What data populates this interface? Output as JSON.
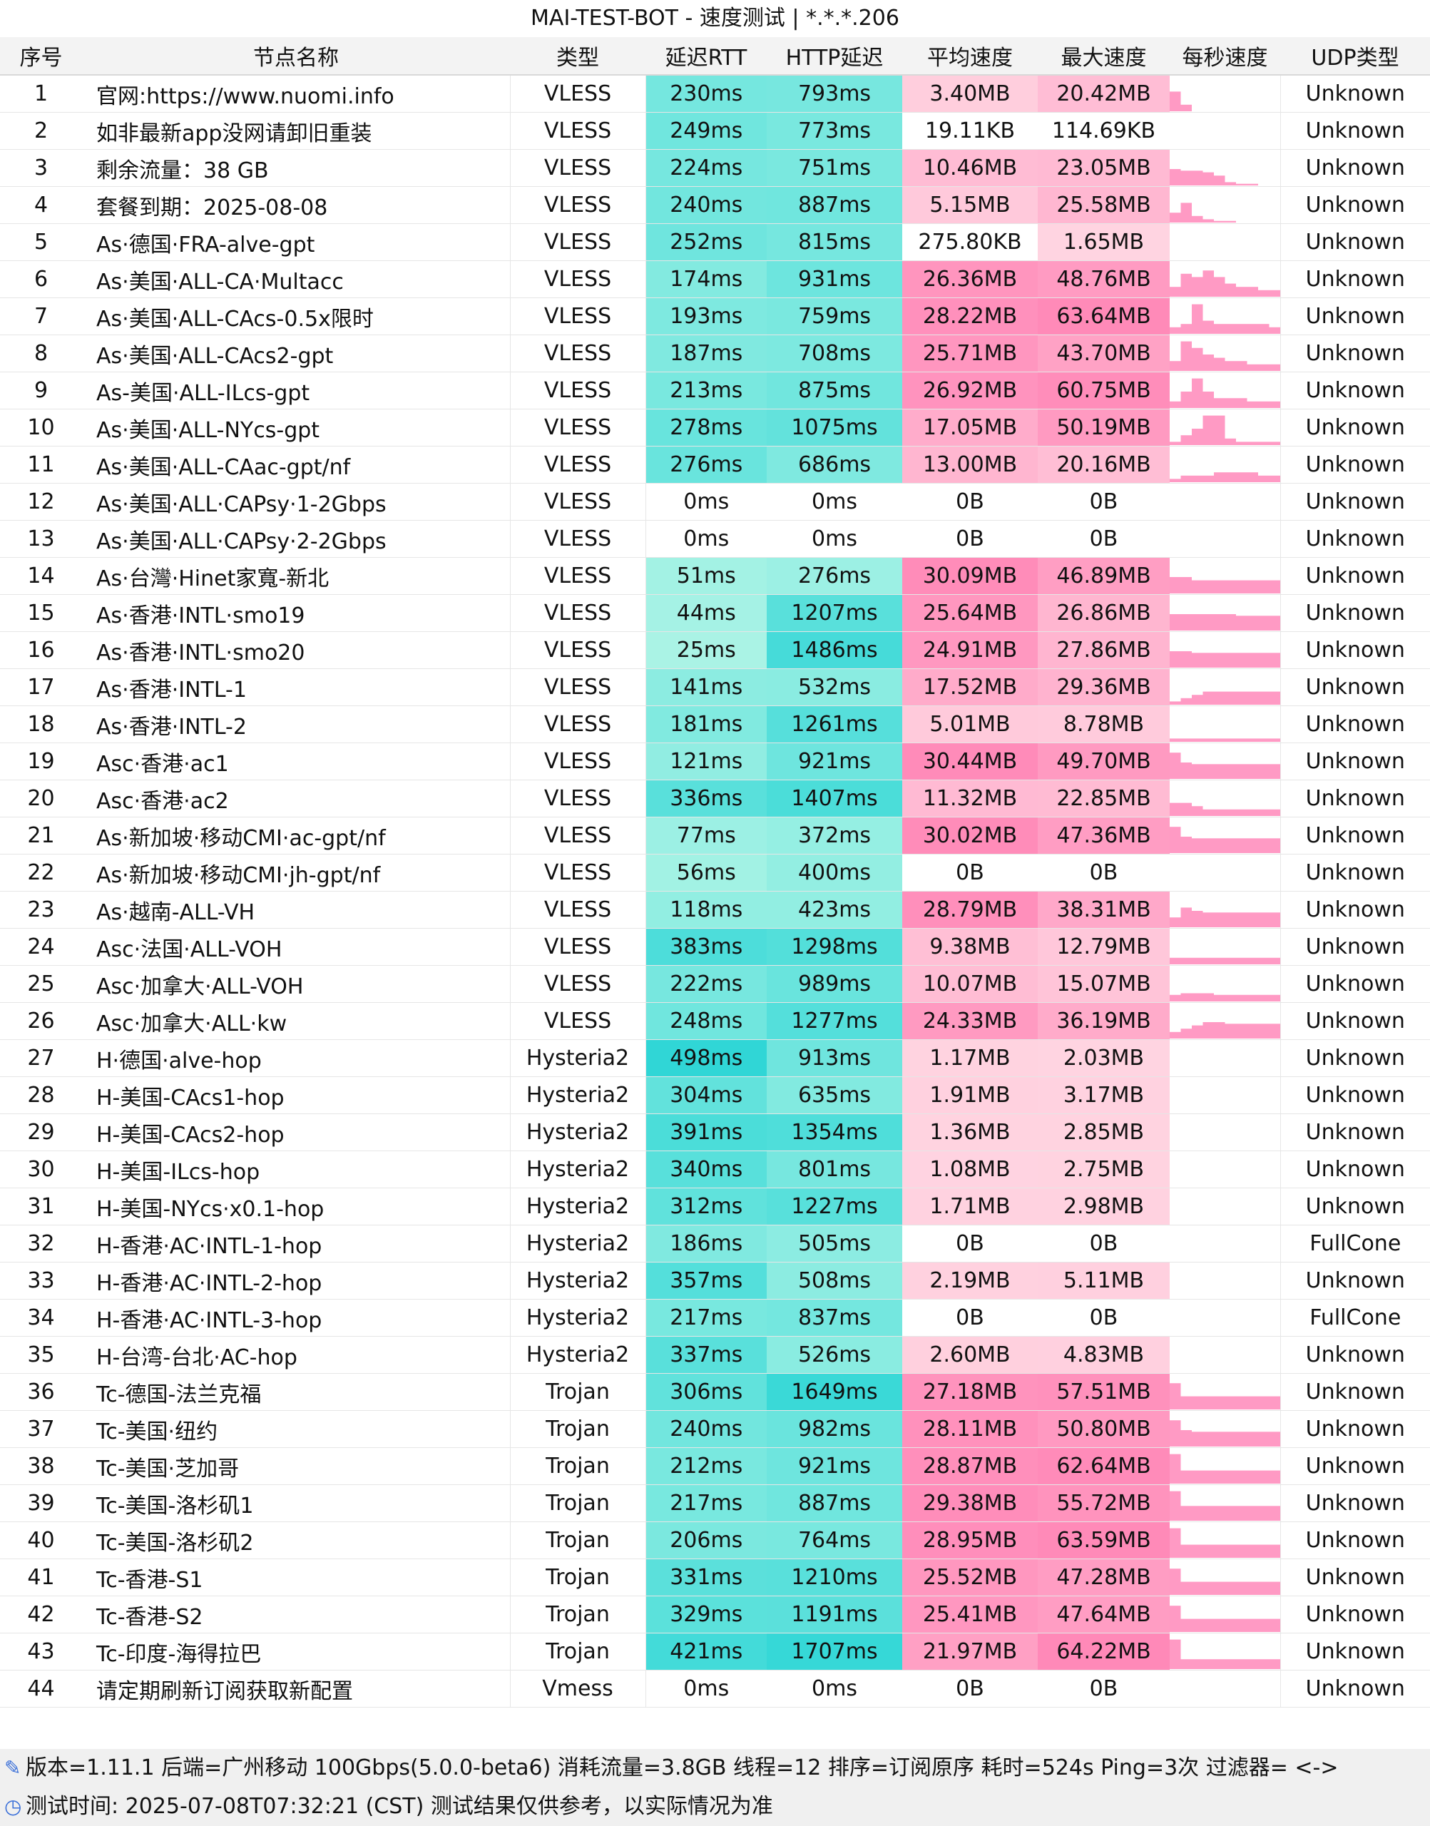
{
  "window_title": "MAI-TEST-BOT - 速度测试 | *.*.*.206",
  "columns": [
    "序号",
    "节点名称",
    "类型",
    "延迟RTT",
    "HTTP延迟",
    "平均速度",
    "最大速度",
    "每秒速度",
    "UDP类型"
  ],
  "rows": [
    {
      "idx": "1",
      "name": "官网:https://www.nuomi.info",
      "type": "VLESS",
      "rtt": "230ms",
      "http": "793ms",
      "avg": "3.40MB",
      "max": "20.42MB",
      "udp": "Unknown",
      "rtt_v": 230,
      "http_v": 793,
      "avg_v": 3.4,
      "max_v": 20.42,
      "spark": [
        0.6,
        0.2,
        0,
        0,
        0,
        0,
        0,
        0,
        0,
        0
      ]
    },
    {
      "idx": "2",
      "name": "如非最新app没网请卸旧重装",
      "type": "VLESS",
      "rtt": "249ms",
      "http": "773ms",
      "avg": "19.11KB",
      "max": "114.69KB",
      "udp": "Unknown",
      "rtt_v": 249,
      "http_v": 773,
      "avg_v": 0.019,
      "max_v": 0.115,
      "spark": [
        0,
        0,
        0,
        0,
        0,
        0,
        0,
        0,
        0,
        0
      ]
    },
    {
      "idx": "3",
      "name": "剩余流量：38 GB",
      "type": "VLESS",
      "rtt": "224ms",
      "http": "751ms",
      "avg": "10.46MB",
      "max": "23.05MB",
      "udp": "Unknown",
      "rtt_v": 224,
      "http_v": 751,
      "avg_v": 10.46,
      "max_v": 23.05,
      "spark": [
        0.5,
        0.45,
        0.45,
        0.4,
        0.3,
        0.1,
        0.05,
        0.05,
        0,
        0
      ]
    },
    {
      "idx": "4",
      "name": "套餐到期：2025-08-08",
      "type": "VLESS",
      "rtt": "240ms",
      "http": "887ms",
      "avg": "5.15MB",
      "max": "25.58MB",
      "udp": "Unknown",
      "rtt_v": 240,
      "http_v": 887,
      "avg_v": 5.15,
      "max_v": 25.58,
      "spark": [
        0.3,
        0.6,
        0.2,
        0.1,
        0.05,
        0.05,
        0,
        0,
        0,
        0
      ]
    },
    {
      "idx": "5",
      "name": "As·德国·FRA-alve-gpt",
      "type": "VLESS",
      "rtt": "252ms",
      "http": "815ms",
      "avg": "275.80KB",
      "max": "1.65MB",
      "udp": "Unknown",
      "rtt_v": 252,
      "http_v": 815,
      "avg_v": 0.27,
      "max_v": 1.65,
      "spark": [
        0,
        0,
        0,
        0,
        0,
        0,
        0,
        0,
        0,
        0
      ]
    },
    {
      "idx": "6",
      "name": "As·美国·ALL-CA·Multacc",
      "type": "VLESS",
      "rtt": "174ms",
      "http": "931ms",
      "avg": "26.36MB",
      "max": "48.76MB",
      "udp": "Unknown",
      "rtt_v": 174,
      "http_v": 931,
      "avg_v": 26.36,
      "max_v": 48.76,
      "spark": [
        0.3,
        0.7,
        0.6,
        0.8,
        0.6,
        0.4,
        0.3,
        0.3,
        0.2,
        0.2
      ]
    },
    {
      "idx": "7",
      "name": "As·美国·ALL-CAcs-0.5x限时",
      "type": "VLESS",
      "rtt": "193ms",
      "http": "759ms",
      "avg": "28.22MB",
      "max": "63.64MB",
      "udp": "Unknown",
      "rtt_v": 193,
      "http_v": 759,
      "avg_v": 28.22,
      "max_v": 63.64,
      "spark": [
        0.2,
        0.3,
        0.9,
        0.4,
        0.3,
        0.3,
        0.3,
        0.3,
        0.3,
        0.2
      ]
    },
    {
      "idx": "8",
      "name": "As·美国·ALL-CAcs2-gpt",
      "type": "VLESS",
      "rtt": "187ms",
      "http": "708ms",
      "avg": "25.71MB",
      "max": "43.70MB",
      "udp": "Unknown",
      "rtt_v": 187,
      "http_v": 708,
      "avg_v": 25.71,
      "max_v": 43.7,
      "spark": [
        0.3,
        0.9,
        0.7,
        0.5,
        0.4,
        0.3,
        0.3,
        0.2,
        0.2,
        0.2
      ]
    },
    {
      "idx": "9",
      "name": "As-美国·ALL-ILcs-gpt",
      "type": "VLESS",
      "rtt": "213ms",
      "http": "875ms",
      "avg": "26.92MB",
      "max": "60.75MB",
      "udp": "Unknown",
      "rtt_v": 213,
      "http_v": 875,
      "avg_v": 26.92,
      "max_v": 60.75,
      "spark": [
        0.2,
        0.5,
        0.9,
        0.5,
        0.3,
        0.3,
        0.3,
        0.2,
        0.2,
        0.2
      ]
    },
    {
      "idx": "10",
      "name": "As·美国·ALL-NYcs-gpt",
      "type": "VLESS",
      "rtt": "278ms",
      "http": "1075ms",
      "avg": "17.05MB",
      "max": "50.19MB",
      "udp": "Unknown",
      "rtt_v": 278,
      "http_v": 1075,
      "avg_v": 17.05,
      "max_v": 50.19,
      "spark": [
        0.1,
        0.3,
        0.5,
        0.9,
        0.9,
        0.2,
        0.1,
        0.1,
        0.1,
        0.1
      ]
    },
    {
      "idx": "11",
      "name": "As·美国·ALL-CAac-gpt/nf",
      "type": "VLESS",
      "rtt": "276ms",
      "http": "686ms",
      "avg": "13.00MB",
      "max": "20.16MB",
      "udp": "Unknown",
      "rtt_v": 276,
      "http_v": 686,
      "avg_v": 13.0,
      "max_v": 20.16,
      "spark": [
        0.1,
        0.2,
        0.2,
        0.2,
        0.3,
        0.3,
        0.3,
        0.3,
        0.2,
        0.2
      ]
    },
    {
      "idx": "12",
      "name": "As·美国·ALL·CAPsy·1-2Gbps",
      "type": "VLESS",
      "rtt": "0ms",
      "http": "0ms",
      "avg": "0B",
      "max": "0B",
      "udp": "Unknown",
      "rtt_v": 0,
      "http_v": 0,
      "avg_v": 0,
      "max_v": 0,
      "spark": [
        0,
        0,
        0,
        0,
        0,
        0,
        0,
        0,
        0,
        0
      ]
    },
    {
      "idx": "13",
      "name": "As·美国·ALL·CAPsy·2-2Gbps",
      "type": "VLESS",
      "rtt": "0ms",
      "http": "0ms",
      "avg": "0B",
      "max": "0B",
      "udp": "Unknown",
      "rtt_v": 0,
      "http_v": 0,
      "avg_v": 0,
      "max_v": 0,
      "spark": [
        0,
        0,
        0,
        0,
        0,
        0,
        0,
        0,
        0,
        0
      ]
    },
    {
      "idx": "14",
      "name": "As·台灣·Hinet家寬-新北",
      "type": "VLESS",
      "rtt": "51ms",
      "http": "276ms",
      "avg": "30.09MB",
      "max": "46.89MB",
      "udp": "Unknown",
      "rtt_v": 51,
      "http_v": 276,
      "avg_v": 30.09,
      "max_v": 46.89,
      "spark": [
        0.5,
        0.5,
        0.4,
        0.4,
        0.4,
        0.4,
        0.4,
        0.4,
        0.4,
        0.4
      ]
    },
    {
      "idx": "15",
      "name": "As·香港·INTL·smo19",
      "type": "VLESS",
      "rtt": "44ms",
      "http": "1207ms",
      "avg": "25.64MB",
      "max": "26.86MB",
      "udp": "Unknown",
      "rtt_v": 44,
      "http_v": 1207,
      "avg_v": 25.64,
      "max_v": 26.86,
      "spark": [
        0.5,
        0.5,
        0.5,
        0.5,
        0.5,
        0.5,
        0.45,
        0.45,
        0.45,
        0.45
      ]
    },
    {
      "idx": "16",
      "name": "As·香港·INTL·smo20",
      "type": "VLESS",
      "rtt": "25ms",
      "http": "1486ms",
      "avg": "24.91MB",
      "max": "27.86MB",
      "udp": "Unknown",
      "rtt_v": 25,
      "http_v": 1486,
      "avg_v": 24.91,
      "max_v": 27.86,
      "spark": [
        0.5,
        0.5,
        0.45,
        0.45,
        0.45,
        0.45,
        0.45,
        0.45,
        0.45,
        0.45
      ]
    },
    {
      "idx": "17",
      "name": "As·香港·INTL-1",
      "type": "VLESS",
      "rtt": "141ms",
      "http": "532ms",
      "avg": "17.52MB",
      "max": "29.36MB",
      "udp": "Unknown",
      "rtt_v": 141,
      "http_v": 532,
      "avg_v": 17.52,
      "max_v": 29.36,
      "spark": [
        0.1,
        0.2,
        0.3,
        0.4,
        0.4,
        0.4,
        0.4,
        0.4,
        0.4,
        0.4
      ]
    },
    {
      "idx": "18",
      "name": "As·香港·INTL-2",
      "type": "VLESS",
      "rtt": "181ms",
      "http": "1261ms",
      "avg": "5.01MB",
      "max": "8.78MB",
      "udp": "Unknown",
      "rtt_v": 181,
      "http_v": 1261,
      "avg_v": 5.01,
      "max_v": 8.78,
      "spark": [
        0.1,
        0.1,
        0.1,
        0.1,
        0.1,
        0.1,
        0.1,
        0.1,
        0.1,
        0.1
      ]
    },
    {
      "idx": "19",
      "name": "Asc·香港·ac1",
      "type": "VLESS",
      "rtt": "121ms",
      "http": "921ms",
      "avg": "30.44MB",
      "max": "49.70MB",
      "udp": "Unknown",
      "rtt_v": 121,
      "http_v": 921,
      "avg_v": 30.44,
      "max_v": 49.7,
      "spark": [
        0.8,
        0.5,
        0.45,
        0.45,
        0.45,
        0.45,
        0.45,
        0.45,
        0.45,
        0.45
      ]
    },
    {
      "idx": "20",
      "name": "Asc·香港·ac2",
      "type": "VLESS",
      "rtt": "336ms",
      "http": "1407ms",
      "avg": "11.32MB",
      "max": "22.85MB",
      "udp": "Unknown",
      "rtt_v": 336,
      "http_v": 1407,
      "avg_v": 11.32,
      "max_v": 22.85,
      "spark": [
        0.4,
        0.4,
        0.3,
        0.2,
        0.2,
        0.2,
        0.2,
        0.2,
        0.2,
        0.2
      ]
    },
    {
      "idx": "21",
      "name": "As·新加坡·移动CMI·ac-gpt/nf",
      "type": "VLESS",
      "rtt": "77ms",
      "http": "372ms",
      "avg": "30.02MB",
      "max": "47.36MB",
      "udp": "Unknown",
      "rtt_v": 77,
      "http_v": 372,
      "avg_v": 30.02,
      "max_v": 47.36,
      "spark": [
        0.8,
        0.5,
        0.45,
        0.45,
        0.45,
        0.45,
        0.45,
        0.45,
        0.45,
        0.45
      ]
    },
    {
      "idx": "22",
      "name": "As·新加坡·移动CMI·jh-gpt/nf",
      "type": "VLESS",
      "rtt": "56ms",
      "http": "400ms",
      "avg": "0B",
      "max": "0B",
      "udp": "Unknown",
      "rtt_v": 56,
      "http_v": 400,
      "avg_v": 0,
      "max_v": 0,
      "spark": [
        0,
        0,
        0,
        0,
        0,
        0,
        0,
        0,
        0,
        0
      ]
    },
    {
      "idx": "23",
      "name": "As·越南-ALL-VH",
      "type": "VLESS",
      "rtt": "118ms",
      "http": "423ms",
      "avg": "28.79MB",
      "max": "38.31MB",
      "udp": "Unknown",
      "rtt_v": 118,
      "http_v": 423,
      "avg_v": 28.79,
      "max_v": 38.31,
      "spark": [
        0.3,
        0.6,
        0.5,
        0.45,
        0.45,
        0.45,
        0.45,
        0.45,
        0.45,
        0.45
      ]
    },
    {
      "idx": "24",
      "name": "Asc·法国·ALL-VOH",
      "type": "VLESS",
      "rtt": "383ms",
      "http": "1298ms",
      "avg": "9.38MB",
      "max": "12.79MB",
      "udp": "Unknown",
      "rtt_v": 383,
      "http_v": 1298,
      "avg_v": 9.38,
      "max_v": 12.79,
      "spark": [
        0.2,
        0.2,
        0.2,
        0.2,
        0.2,
        0.2,
        0.2,
        0.2,
        0.2,
        0.2
      ]
    },
    {
      "idx": "25",
      "name": "Asc·加拿大·ALL-VOH",
      "type": "VLESS",
      "rtt": "222ms",
      "http": "989ms",
      "avg": "10.07MB",
      "max": "15.07MB",
      "udp": "Unknown",
      "rtt_v": 222,
      "http_v": 989,
      "avg_v": 10.07,
      "max_v": 15.07,
      "spark": [
        0.2,
        0.25,
        0.25,
        0.25,
        0.2,
        0.2,
        0.2,
        0.2,
        0.2,
        0.2
      ]
    },
    {
      "idx": "26",
      "name": "Asc·加拿大·ALL·kw",
      "type": "VLESS",
      "rtt": "248ms",
      "http": "1277ms",
      "avg": "24.33MB",
      "max": "36.19MB",
      "udp": "Unknown",
      "rtt_v": 248,
      "http_v": 1277,
      "avg_v": 24.33,
      "max_v": 36.19,
      "spark": [
        0.2,
        0.3,
        0.4,
        0.5,
        0.5,
        0.45,
        0.45,
        0.45,
        0.45,
        0.45
      ]
    },
    {
      "idx": "27",
      "name": "H·德国·alve-hop",
      "type": "Hysteria2",
      "rtt": "498ms",
      "http": "913ms",
      "avg": "1.17MB",
      "max": "2.03MB",
      "udp": "Unknown",
      "rtt_v": 498,
      "http_v": 913,
      "avg_v": 1.17,
      "max_v": 2.03,
      "spark": [
        0,
        0,
        0,
        0,
        0,
        0,
        0,
        0,
        0,
        0
      ]
    },
    {
      "idx": "28",
      "name": "H-美国-CAcs1-hop",
      "type": "Hysteria2",
      "rtt": "304ms",
      "http": "635ms",
      "avg": "1.91MB",
      "max": "3.17MB",
      "udp": "Unknown",
      "rtt_v": 304,
      "http_v": 635,
      "avg_v": 1.91,
      "max_v": 3.17,
      "spark": [
        0,
        0,
        0,
        0,
        0,
        0,
        0,
        0,
        0,
        0
      ]
    },
    {
      "idx": "29",
      "name": "H-美国-CAcs2-hop",
      "type": "Hysteria2",
      "rtt": "391ms",
      "http": "1354ms",
      "avg": "1.36MB",
      "max": "2.85MB",
      "udp": "Unknown",
      "rtt_v": 391,
      "http_v": 1354,
      "avg_v": 1.36,
      "max_v": 2.85,
      "spark": [
        0,
        0,
        0,
        0,
        0,
        0,
        0,
        0,
        0,
        0
      ]
    },
    {
      "idx": "30",
      "name": "H-美国-ILcs-hop",
      "type": "Hysteria2",
      "rtt": "340ms",
      "http": "801ms",
      "avg": "1.08MB",
      "max": "2.75MB",
      "udp": "Unknown",
      "rtt_v": 340,
      "http_v": 801,
      "avg_v": 1.08,
      "max_v": 2.75,
      "spark": [
        0,
        0,
        0,
        0,
        0,
        0,
        0,
        0,
        0,
        0
      ]
    },
    {
      "idx": "31",
      "name": "H-美国-NYcs·x0.1-hop",
      "type": "Hysteria2",
      "rtt": "312ms",
      "http": "1227ms",
      "avg": "1.71MB",
      "max": "2.98MB",
      "udp": "Unknown",
      "rtt_v": 312,
      "http_v": 1227,
      "avg_v": 1.71,
      "max_v": 2.98,
      "spark": [
        0,
        0,
        0,
        0,
        0,
        0,
        0,
        0,
        0,
        0
      ]
    },
    {
      "idx": "32",
      "name": "H-香港·AC·INTL-1-hop",
      "type": "Hysteria2",
      "rtt": "186ms",
      "http": "505ms",
      "avg": "0B",
      "max": "0B",
      "udp": "FullCone",
      "rtt_v": 186,
      "http_v": 505,
      "avg_v": 0,
      "max_v": 0,
      "spark": [
        0,
        0,
        0,
        0,
        0,
        0,
        0,
        0,
        0,
        0
      ]
    },
    {
      "idx": "33",
      "name": "H-香港·AC·INTL-2-hop",
      "type": "Hysteria2",
      "rtt": "357ms",
      "http": "508ms",
      "avg": "2.19MB",
      "max": "5.11MB",
      "udp": "Unknown",
      "rtt_v": 357,
      "http_v": 508,
      "avg_v": 2.19,
      "max_v": 5.11,
      "spark": [
        0,
        0,
        0,
        0,
        0,
        0,
        0,
        0,
        0,
        0
      ]
    },
    {
      "idx": "34",
      "name": "H-香港·AC·INTL-3-hop",
      "type": "Hysteria2",
      "rtt": "217ms",
      "http": "837ms",
      "avg": "0B",
      "max": "0B",
      "udp": "FullCone",
      "rtt_v": 217,
      "http_v": 837,
      "avg_v": 0,
      "max_v": 0,
      "spark": [
        0,
        0,
        0,
        0,
        0,
        0,
        0,
        0,
        0,
        0
      ]
    },
    {
      "idx": "35",
      "name": "H-台湾-台北·AC-hop",
      "type": "Hysteria2",
      "rtt": "337ms",
      "http": "526ms",
      "avg": "2.60MB",
      "max": "4.83MB",
      "udp": "Unknown",
      "rtt_v": 337,
      "http_v": 526,
      "avg_v": 2.6,
      "max_v": 4.83,
      "spark": [
        0,
        0,
        0,
        0,
        0,
        0,
        0,
        0,
        0,
        0
      ]
    },
    {
      "idx": "36",
      "name": "Tc-德国-法兰克福",
      "type": "Trojan",
      "rtt": "306ms",
      "http": "1649ms",
      "avg": "27.18MB",
      "max": "57.51MB",
      "udp": "Unknown",
      "rtt_v": 306,
      "http_v": 1649,
      "avg_v": 27.18,
      "max_v": 57.51,
      "spark": [
        0.8,
        0.4,
        0.4,
        0.4,
        0.4,
        0.4,
        0.4,
        0.4,
        0.4,
        0.4
      ]
    },
    {
      "idx": "37",
      "name": "Tc-美国·纽约",
      "type": "Trojan",
      "rtt": "240ms",
      "http": "982ms",
      "avg": "28.11MB",
      "max": "50.80MB",
      "udp": "Unknown",
      "rtt_v": 240,
      "http_v": 982,
      "avg_v": 28.11,
      "max_v": 50.8,
      "spark": [
        0.8,
        0.5,
        0.45,
        0.45,
        0.45,
        0.45,
        0.45,
        0.45,
        0.45,
        0.45
      ]
    },
    {
      "idx": "38",
      "name": "Tc-美国·芝加哥",
      "type": "Trojan",
      "rtt": "212ms",
      "http": "921ms",
      "avg": "28.87MB",
      "max": "62.64MB",
      "udp": "Unknown",
      "rtt_v": 212,
      "http_v": 921,
      "avg_v": 28.87,
      "max_v": 62.64,
      "spark": [
        0.9,
        0.4,
        0.4,
        0.4,
        0.4,
        0.4,
        0.4,
        0.4,
        0.4,
        0.4
      ]
    },
    {
      "idx": "39",
      "name": "Tc-美国-洛杉矶1",
      "type": "Trojan",
      "rtt": "217ms",
      "http": "887ms",
      "avg": "29.38MB",
      "max": "55.72MB",
      "udp": "Unknown",
      "rtt_v": 217,
      "http_v": 887,
      "avg_v": 29.38,
      "max_v": 55.72,
      "spark": [
        0.9,
        0.45,
        0.45,
        0.45,
        0.45,
        0.45,
        0.45,
        0.45,
        0.45,
        0.45
      ]
    },
    {
      "idx": "40",
      "name": "Tc-美国-洛杉矶2",
      "type": "Trojan",
      "rtt": "206ms",
      "http": "764ms",
      "avg": "28.95MB",
      "max": "63.59MB",
      "udp": "Unknown",
      "rtt_v": 206,
      "http_v": 764,
      "avg_v": 28.95,
      "max_v": 63.59,
      "spark": [
        0.9,
        0.4,
        0.4,
        0.4,
        0.4,
        0.4,
        0.4,
        0.4,
        0.4,
        0.4
      ]
    },
    {
      "idx": "41",
      "name": "Tc-香港-S1",
      "type": "Trojan",
      "rtt": "331ms",
      "http": "1210ms",
      "avg": "25.52MB",
      "max": "47.28MB",
      "udp": "Unknown",
      "rtt_v": 331,
      "http_v": 1210,
      "avg_v": 25.52,
      "max_v": 47.28,
      "spark": [
        0.8,
        0.4,
        0.4,
        0.4,
        0.4,
        0.4,
        0.4,
        0.4,
        0.4,
        0.4
      ]
    },
    {
      "idx": "42",
      "name": "Tc-香港-S2",
      "type": "Trojan",
      "rtt": "329ms",
      "http": "1191ms",
      "avg": "25.41MB",
      "max": "47.64MB",
      "udp": "Unknown",
      "rtt_v": 329,
      "http_v": 1191,
      "avg_v": 25.41,
      "max_v": 47.64,
      "spark": [
        0.8,
        0.4,
        0.4,
        0.4,
        0.4,
        0.4,
        0.4,
        0.4,
        0.4,
        0.4
      ]
    },
    {
      "idx": "43",
      "name": "Tc-印度-海得拉巴",
      "type": "Trojan",
      "rtt": "421ms",
      "http": "1707ms",
      "avg": "21.97MB",
      "max": "64.22MB",
      "udp": "Unknown",
      "rtt_v": 421,
      "http_v": 1707,
      "avg_v": 21.97,
      "max_v": 64.22,
      "spark": [
        0.9,
        0.3,
        0.3,
        0.3,
        0.3,
        0.3,
        0.3,
        0.3,
        0.3,
        0.3
      ]
    },
    {
      "idx": "44",
      "name": "请定期刷新订阅获取新配置",
      "type": "Vmess",
      "rtt": "0ms",
      "http": "0ms",
      "avg": "0B",
      "max": "0B",
      "udp": "Unknown",
      "rtt_v": 0,
      "http_v": 0,
      "avg_v": 0,
      "max_v": 0,
      "spark": [
        0,
        0,
        0,
        0,
        0,
        0,
        0,
        0,
        0,
        0
      ]
    }
  ],
  "footer": {
    "line1": "版本=1.11.1  后端=广州移动 100Gbps(5.0.0-beta6) 消耗流量=3.8GB  线程=12  排序=订阅原序  耗时=524s  Ping=3次  过滤器= <->",
    "line2": "测试时间: 2025-07-08T07:32:21 (CST)  测试结果仅供参考，以实际情况为准",
    "icon1": "link-icon",
    "icon2": "clock-icon"
  },
  "colors": {
    "latency_base": "#b0f5e6",
    "latency_strong": "#2fd6d6",
    "speed_base": "#ffd6e2",
    "speed_strong": "#ff82b4",
    "spark": "#ff9ac4"
  }
}
